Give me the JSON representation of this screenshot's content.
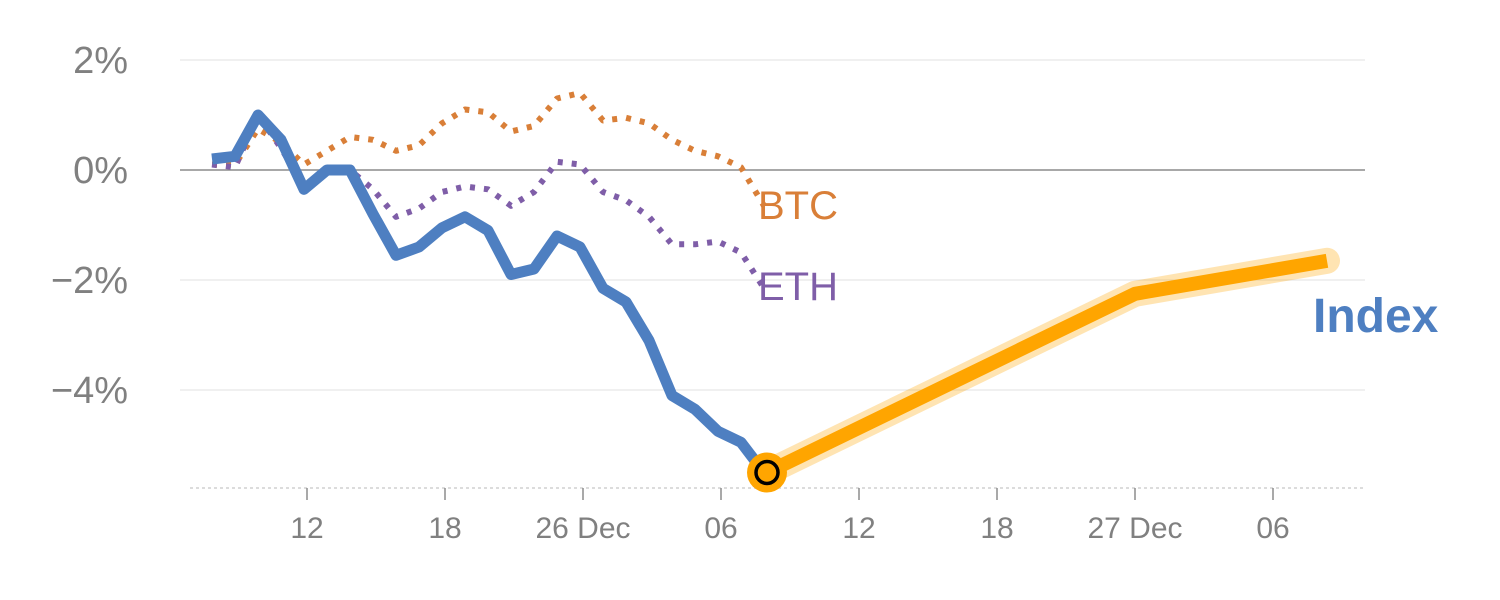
{
  "chart_data": {
    "type": "line",
    "title": "",
    "xlabel": "",
    "ylabel": "",
    "ylim": [
      -5.8,
      2.2
    ],
    "y_ticks": [
      2,
      0,
      -2,
      -4
    ],
    "y_tick_labels": [
      "2%",
      "0%",
      "−2%",
      "−4%"
    ],
    "x_tick_labels": [
      "12",
      "18",
      "26 Dec",
      "06",
      "12",
      "18",
      "27 Dec",
      "06"
    ],
    "grid": true,
    "zero_line": true,
    "series": [
      {
        "name": "Index",
        "color": "#4e7fc1",
        "style": "solid",
        "values": [
          0.2,
          0.25,
          1.0,
          0.55,
          -0.35,
          0.0,
          0.0,
          -0.8,
          -1.55,
          -1.4,
          -1.05,
          -0.85,
          -1.1,
          -1.9,
          -1.8,
          -1.2,
          -1.4,
          -2.15,
          -2.4,
          -3.1,
          -4.1,
          -4.35,
          -4.75,
          -4.95,
          -5.5
        ]
      },
      {
        "name": "BTC",
        "color": "#d97f38",
        "style": "dotted",
        "values": [
          0.1,
          0.1,
          0.75,
          0.5,
          0.1,
          0.35,
          0.6,
          0.55,
          0.35,
          0.45,
          0.85,
          1.1,
          1.05,
          0.7,
          0.8,
          1.3,
          1.4,
          0.9,
          0.95,
          0.85,
          0.55,
          0.35,
          0.25,
          0.05,
          -0.65
        ]
      },
      {
        "name": "ETH",
        "color": "#7f5ea8",
        "style": "dotted",
        "values": [
          0.1,
          0.05,
          1.0,
          0.4,
          -0.3,
          0.0,
          0.0,
          -0.35,
          -0.85,
          -0.7,
          -0.4,
          -0.3,
          -0.35,
          -0.65,
          -0.4,
          0.15,
          0.1,
          -0.4,
          -0.55,
          -0.85,
          -1.35,
          -1.35,
          -1.3,
          -1.5,
          -2.15
        ]
      }
    ],
    "projection": {
      "color": "#ffa500",
      "values": [
        -5.5,
        -2.25,
        -1.65
      ]
    },
    "current_point_value": -5.5,
    "labels": {
      "btc": "BTC",
      "eth": "ETH",
      "index": "Index"
    }
  }
}
